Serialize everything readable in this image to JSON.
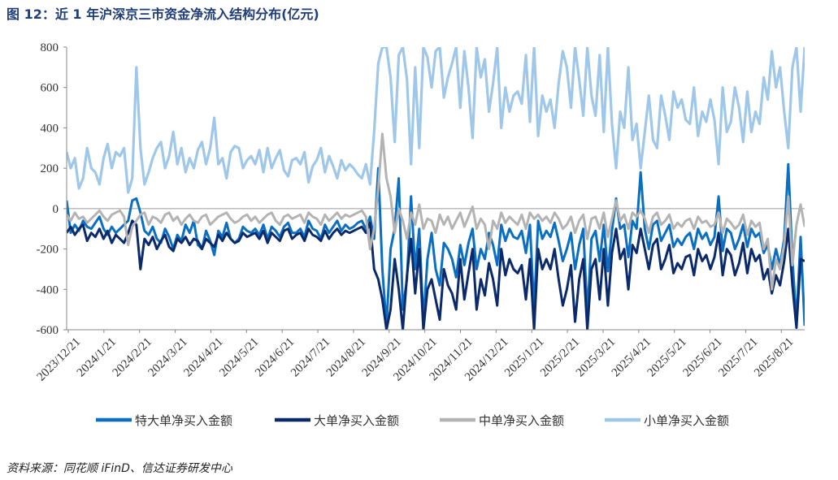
{
  "title": "图 12：近 1 年沪深京三市资金净流入结构分布(亿元)",
  "source": "资料来源：同花顺 iFinD、信达证券研发中心",
  "colors": {
    "super_large": "#0a6fc2",
    "large": "#0b2a6b",
    "medium": "#b3b3b3",
    "small": "#9ec7ea"
  },
  "chart_data": {
    "type": "line",
    "title": "图 12：近 1 年沪深京三市资金净流入结构分布(亿元)",
    "xlabel": "",
    "ylabel": "",
    "ylim": [
      -600,
      800
    ],
    "yticks": [
      -600,
      -400,
      -200,
      0,
      200,
      400,
      600,
      800
    ],
    "x_tick_labels": [
      "2023/12/21",
      "2024/1/21",
      "2024/2/21",
      "2024/3/21",
      "2024/4/21",
      "2024/5/21",
      "2024/6/21",
      "2024/7/21",
      "2024/8/21",
      "2024/9/21",
      "2024/10/21",
      "2024/11/21",
      "2024/12/21",
      "2025/1/21",
      "2025/2/21",
      "2025/3/21",
      "2025/4/21",
      "2025/5/21",
      "2025/6/21",
      "2025/7/21",
      "2025/8/21"
    ],
    "grid": false,
    "legend_position": "bottom",
    "series": [
      {
        "name": "特大单净买入金额",
        "values": [
          40,
          -120,
          -80,
          -110,
          -60,
          -90,
          -100,
          -70,
          -40,
          -100,
          -130,
          -90,
          -120,
          -100,
          -80,
          -60,
          40,
          50,
          -20,
          -110,
          -130,
          -90,
          -150,
          -170,
          -100,
          -140,
          -200,
          -130,
          -160,
          -80,
          -120,
          -60,
          -180,
          -200,
          -110,
          -160,
          -230,
          -110,
          -140,
          -70,
          -150,
          -170,
          -150,
          -90,
          -110,
          -120,
          -100,
          -130,
          -80,
          -150,
          -90,
          -110,
          -140,
          -90,
          -70,
          -120,
          -120,
          -100,
          -140,
          -60,
          -100,
          -110,
          -150,
          -80,
          -120,
          -90,
          -60,
          -110,
          -80,
          -100,
          -90,
          -70,
          -60,
          -100,
          -40,
          -150,
          200,
          -300,
          -580,
          -200,
          -100,
          150,
          -500,
          -350,
          60,
          -300,
          -100,
          -560,
          -250,
          -120,
          -300,
          -380,
          -170,
          -200,
          -250,
          -340,
          -180,
          -280,
          -170,
          -100,
          -300,
          -200,
          -250,
          -120,
          -180,
          -280,
          -80,
          -160,
          -100,
          -140,
          -150,
          -110,
          -220,
          -80,
          -500,
          -60,
          -150,
          -110,
          -140,
          -70,
          -160,
          -260,
          -200,
          -120,
          -300,
          -180,
          -100,
          -520,
          -150,
          -110,
          -260,
          -80,
          -310,
          -110,
          50,
          -100,
          -80,
          -240,
          -60,
          -100,
          180,
          -100,
          -200,
          -80,
          -60,
          -160,
          -120,
          -80,
          -190,
          -150,
          -180,
          -140,
          -120,
          -200,
          -100,
          -150,
          -120,
          -180,
          -140,
          60,
          -210,
          -100,
          -120,
          -200,
          -150,
          -80,
          -190,
          -100,
          -140,
          -120,
          -220,
          -180,
          -300,
          -200,
          -280,
          -150,
          220,
          -250,
          -560,
          -140,
          -580
        ]
      },
      {
        "name": "大单净买入金额",
        "values": [
          -120,
          -90,
          -130,
          -100,
          -80,
          -160,
          -120,
          -140,
          -100,
          -150,
          -110,
          -170,
          -130,
          -150,
          -170,
          -120,
          -60,
          -80,
          -300,
          -150,
          -180,
          -140,
          -200,
          -160,
          -130,
          -190,
          -210,
          -150,
          -170,
          -140,
          -180,
          -150,
          -160,
          -200,
          -150,
          -170,
          -190,
          -130,
          -160,
          -120,
          -150,
          -170,
          -160,
          -120,
          -140,
          -130,
          -120,
          -150,
          -110,
          -170,
          -120,
          -140,
          -160,
          -110,
          -100,
          -150,
          -130,
          -120,
          -160,
          -100,
          -130,
          -140,
          -160,
          -110,
          -150,
          -120,
          -100,
          -130,
          -110,
          -120,
          -110,
          -100,
          -90,
          -120,
          -70,
          -300,
          -350,
          -450,
          -600,
          -500,
          -250,
          -400,
          -600,
          -330,
          -150,
          -420,
          -200,
          -600,
          -400,
          -350,
          -450,
          -550,
          -300,
          -380,
          -420,
          -500,
          -250,
          -450,
          -320,
          -200,
          -500,
          -350,
          -430,
          -270,
          -350,
          -480,
          -200,
          -330,
          -250,
          -300,
          -320,
          -280,
          -450,
          -250,
          -600,
          -200,
          -300,
          -250,
          -300,
          -200,
          -350,
          -480,
          -400,
          -280,
          -560,
          -350,
          -250,
          -600,
          -300,
          -250,
          -450,
          -200,
          -480,
          -220,
          -100,
          -250,
          -200,
          -400,
          -180,
          -220,
          -100,
          -200,
          -300,
          -180,
          -150,
          -300,
          -250,
          -180,
          -320,
          -270,
          -300,
          -240,
          -230,
          -330,
          -200,
          -260,
          -230,
          -300,
          -240,
          -120,
          -330,
          -200,
          -230,
          -330,
          -270,
          -170,
          -320,
          -200,
          -260,
          -230,
          -350,
          -300,
          -420,
          -330,
          -380,
          -260,
          -100,
          -380,
          -590,
          -250,
          -260
        ]
      },
      {
        "name": "中单净买入金额",
        "values": [
          -30,
          -60,
          -20,
          -50,
          -40,
          -70,
          -50,
          -30,
          -10,
          -40,
          -60,
          -30,
          -20,
          -10,
          -40,
          -180,
          -90,
          -60,
          -30,
          -20,
          -80,
          -40,
          -50,
          -70,
          -30,
          -20,
          -60,
          -40,
          -80,
          -50,
          -30,
          -60,
          -70,
          -40,
          -30,
          -80,
          -60,
          -40,
          -30,
          -20,
          -50,
          -70,
          -60,
          -40,
          -30,
          -60,
          -40,
          -70,
          -50,
          -30,
          -20,
          -60,
          -80,
          -40,
          -30,
          -50,
          -40,
          -30,
          -70,
          -20,
          -40,
          -50,
          -80,
          -30,
          -60,
          -40,
          -20,
          -50,
          -30,
          -40,
          -30,
          -20,
          -10,
          -40,
          -200,
          -100,
          100,
          370,
          150,
          60,
          -120,
          0,
          -60,
          -150,
          -20,
          -80,
          20,
          -100,
          -50,
          -60,
          -120,
          -30,
          -80,
          -40,
          -100,
          -60,
          -20,
          -90,
          -40,
          10,
          -100,
          -50,
          -80,
          -200,
          -60,
          -100,
          -20,
          -70,
          -40,
          -60,
          -80,
          -30,
          -100,
          -20,
          -50,
          -30,
          -60,
          -40,
          -70,
          -20,
          -50,
          -100,
          -80,
          -40,
          -120,
          -60,
          -30,
          -150,
          -50,
          -40,
          -100,
          -20,
          -140,
          -50,
          40,
          -60,
          -30,
          -100,
          -20,
          -40,
          -10,
          -50,
          -120,
          -40,
          -20,
          -80,
          -60,
          -30,
          -100,
          -70,
          -90,
          -60,
          -50,
          -100,
          -40,
          -70,
          -60,
          -90,
          -80,
          -20,
          -120,
          -50,
          -70,
          -100,
          -80,
          -30,
          -130,
          -60,
          -90,
          -70,
          -200,
          -150,
          -400,
          -250,
          -300,
          -180,
          60,
          -280,
          -80,
          20,
          -90
        ]
      },
      {
        "name": "小单净买入金额",
        "values": [
          280,
          200,
          250,
          100,
          150,
          300,
          200,
          180,
          120,
          250,
          320,
          200,
          280,
          260,
          300,
          80,
          150,
          700,
          300,
          120,
          180,
          250,
          300,
          330,
          200,
          260,
          380,
          220,
          300,
          180,
          250,
          200,
          290,
          330,
          220,
          300,
          450,
          220,
          250,
          150,
          280,
          310,
          300,
          200,
          240,
          260,
          220,
          290,
          180,
          300,
          200,
          250,
          290,
          190,
          160,
          240,
          250,
          220,
          280,
          130,
          210,
          240,
          300,
          180,
          260,
          210,
          150,
          240,
          190,
          220,
          200,
          170,
          150,
          220,
          120,
          380,
          720,
          800,
          800,
          650,
          330,
          760,
          800,
          640,
          220,
          700,
          300,
          800,
          750,
          600,
          780,
          800,
          550,
          650,
          720,
          800,
          500,
          780,
          600,
          350,
          800,
          650,
          740,
          480,
          620,
          800,
          400,
          600,
          480,
          560,
          580,
          520,
          760,
          430,
          800,
          360,
          560,
          480,
          540,
          400,
          620,
          780,
          700,
          500,
          800,
          640,
          460,
          800,
          560,
          460,
          760,
          380,
          800,
          420,
          200,
          480,
          400,
          700,
          340,
          420,
          200,
          380,
          560,
          340,
          300,
          560,
          460,
          340,
          580,
          500,
          540,
          440,
          420,
          600,
          360,
          480,
          430,
          540,
          440,
          220,
          600,
          380,
          430,
          600,
          500,
          330,
          580,
          380,
          480,
          420,
          650,
          540,
          780,
          600,
          700,
          480,
          300,
          700,
          800,
          480,
          800
        ]
      }
    ]
  },
  "legend": [
    "特大单净买入金额",
    "大单净买入金额",
    "中单净买入金额",
    "小单净买入金额"
  ]
}
